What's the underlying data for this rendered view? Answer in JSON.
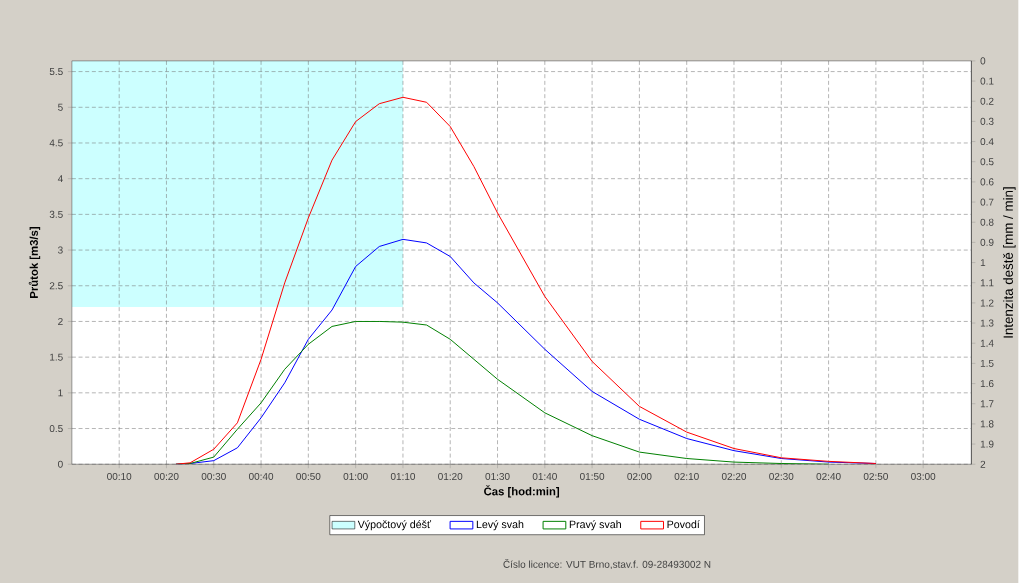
{
  "chart_data": {
    "type": "line",
    "xlabel": "Čas [hod:min]",
    "ylabel": "Průtok [m3/s]",
    "y2label": "Intenzita deště [mm / min]",
    "x": [
      0.3667,
      0.4167,
      0.5,
      0.5833,
      0.6667,
      0.75,
      0.8333,
      0.9167,
      1.0,
      1.0833,
      1.1667,
      1.25,
      1.3333,
      1.4167,
      1.5,
      1.6667,
      1.8333,
      2.0,
      2.1667,
      2.3333,
      2.5,
      2.6667,
      2.8333
    ],
    "series": [
      {
        "name": "Výpočtový déšť",
        "type": "area",
        "axis": "y2",
        "color": "#ccffff",
        "x": [
          0,
          1.1667
        ],
        "values": [
          1.22,
          1.22
        ]
      },
      {
        "name": "Levý svah",
        "color": "#0000ff",
        "values": [
          0,
          0.01,
          0.05,
          0.23,
          0.65,
          1.14,
          1.75,
          2.16,
          2.77,
          3.05,
          3.15,
          3.1,
          2.91,
          2.54,
          2.26,
          1.61,
          1.02,
          0.63,
          0.36,
          0.19,
          0.08,
          0.03,
          0.01
        ]
      },
      {
        "name": "Pravý svah",
        "color": "#008000",
        "values": [
          0,
          0.01,
          0.1,
          0.49,
          0.86,
          1.33,
          1.68,
          1.93,
          2.0,
          2.0,
          1.99,
          1.95,
          1.75,
          1.47,
          1.19,
          0.72,
          0.4,
          0.17,
          0.08,
          0.03,
          0.01,
          0,
          null
        ]
      },
      {
        "name": "Povodí",
        "color": "#ff0000",
        "values": [
          0,
          0.02,
          0.21,
          0.58,
          1.47,
          2.54,
          3.45,
          4.26,
          4.8,
          5.05,
          5.14,
          5.07,
          4.73,
          4.17,
          3.52,
          2.35,
          1.44,
          0.81,
          0.45,
          0.22,
          0.09,
          0.04,
          0.01
        ]
      }
    ],
    "xlim": [
      0,
      3.17
    ],
    "xticks": [
      {
        "value": 0.1667,
        "label": "00:10"
      },
      {
        "value": 0.3333,
        "label": "00:20"
      },
      {
        "value": 0.5,
        "label": "00:30"
      },
      {
        "value": 0.6667,
        "label": "00:40"
      },
      {
        "value": 0.8333,
        "label": "00:50"
      },
      {
        "value": 1.0,
        "label": "01:00"
      },
      {
        "value": 1.1667,
        "label": "01:10"
      },
      {
        "value": 1.3333,
        "label": "01:20"
      },
      {
        "value": 1.5,
        "label": "01:30"
      },
      {
        "value": 1.6667,
        "label": "01:40"
      },
      {
        "value": 1.8333,
        "label": "01:50"
      },
      {
        "value": 2.0,
        "label": "02:00"
      },
      {
        "value": 2.1667,
        "label": "02:10"
      },
      {
        "value": 2.3333,
        "label": "02:20"
      },
      {
        "value": 2.5,
        "label": "02:30"
      },
      {
        "value": 2.6667,
        "label": "02:40"
      },
      {
        "value": 2.8333,
        "label": "02:50"
      },
      {
        "value": 3.0,
        "label": "03:00"
      }
    ],
    "ylim": [
      0,
      5.65
    ],
    "yticks": [
      0,
      0.5,
      1,
      1.5,
      2,
      2.5,
      3,
      3.5,
      4,
      4.5,
      5,
      5.5
    ],
    "y2lim": [
      2,
      0
    ],
    "y2ticks": [
      0,
      0.1,
      0.2,
      0.3,
      0.4,
      0.5,
      0.6,
      0.7,
      0.8,
      0.9,
      1,
      1.1,
      1.2,
      1.3,
      1.4,
      1.5,
      1.6,
      1.7,
      1.8,
      1.9,
      2
    ],
    "grid": true,
    "legend": "bottom",
    "annotations": [
      "Číslo licence: VUT Brno,stav.f. 09-28493002 N"
    ]
  }
}
